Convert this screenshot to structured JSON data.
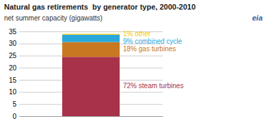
{
  "chart_data": {
    "type": "bar",
    "stacked": true,
    "title": "Natural gas retirements  by generator type, 2000-2010",
    "subtitle": "net summer capacity (gigawatts)",
    "annotations": [
      "eia"
    ],
    "categories": [
      null
    ],
    "series": [
      {
        "name": "72% steam turbines",
        "color": "#A8324A",
        "values": [
          24.48
        ]
      },
      {
        "name": "18% gas turbines",
        "color": "#C87820",
        "values": [
          6.12
        ]
      },
      {
        "name": "9% combined cycle",
        "color": "#29A8DC",
        "values": [
          3.06
        ]
      },
      {
        "name": "1% other",
        "color": "#F5C800",
        "values": [
          0.34
        ]
      }
    ],
    "ylim": [
      0,
      35
    ],
    "yticks": [
      0,
      5,
      10,
      15,
      20,
      25,
      30,
      35
    ],
    "grid": true,
    "tick_labels": "y"
  }
}
